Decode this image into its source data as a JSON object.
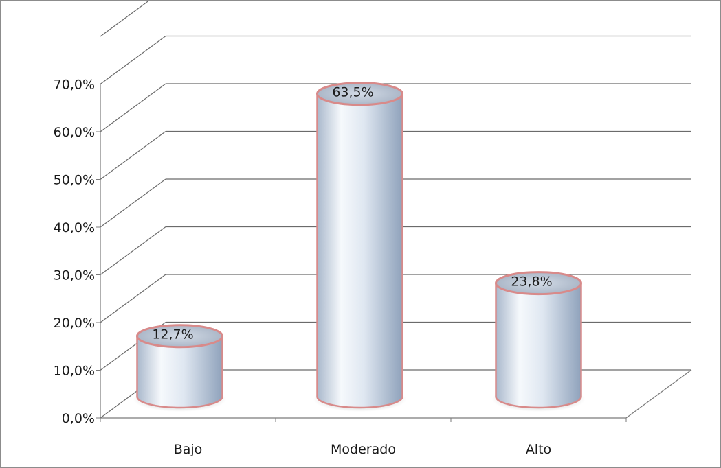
{
  "chart_data": {
    "type": "bar",
    "categories": [
      "Bajo",
      "Moderado",
      "Alto"
    ],
    "values": [
      12.7,
      63.5,
      23.8
    ],
    "data_labels": [
      "12,7%",
      "63,5%",
      "23,8%"
    ],
    "y_ticks": [
      "0,0%",
      "10,0%",
      "20,0%",
      "30,0%",
      "40,0%",
      "50,0%",
      "60,0%",
      "70,0%"
    ],
    "ylim": [
      0,
      80
    ],
    "grid": true,
    "legend": "none",
    "style": "3d-cylinder",
    "colors": {
      "bar_fill": "#d7e1ee",
      "bar_outline": "#d88a8a",
      "gridline": "#6b6b6b",
      "axis": "#7a7a7a"
    }
  }
}
